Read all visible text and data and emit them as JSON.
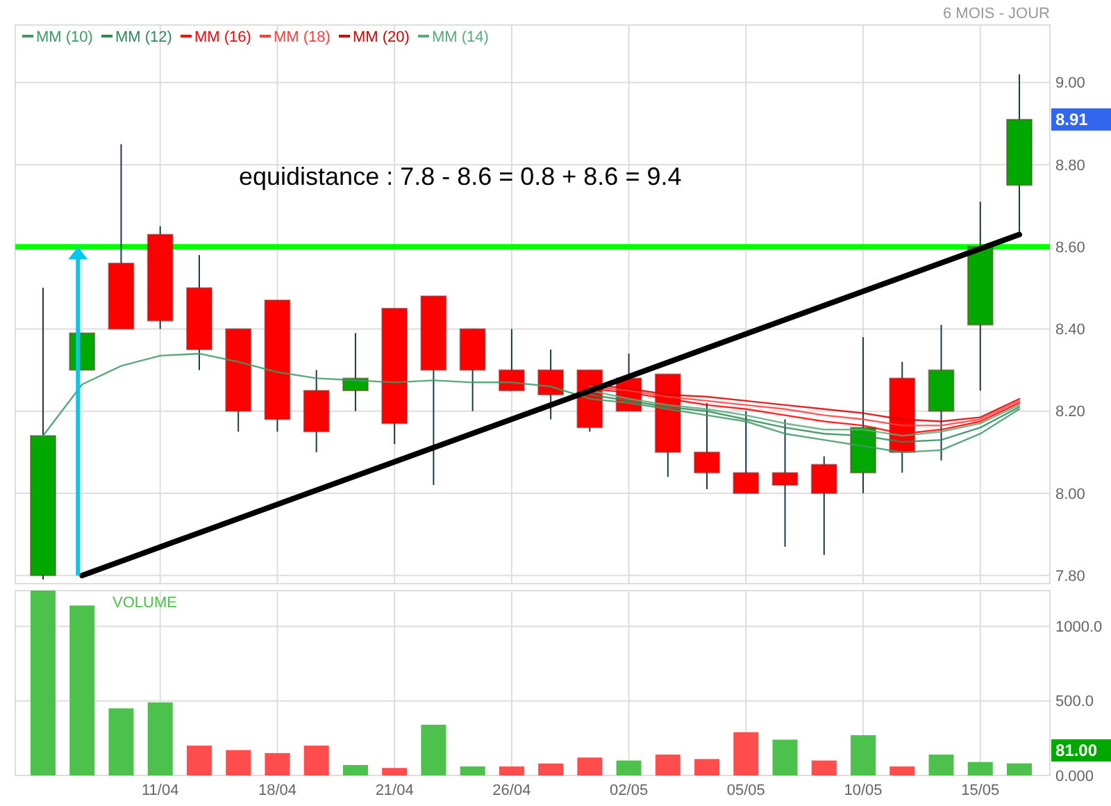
{
  "chart_data": [
    {
      "type": "candlestick",
      "subtitle": "6 MOIS - JOUR",
      "categories": [
        null,
        null,
        null,
        null,
        null,
        null,
        null,
        null,
        null,
        null,
        null,
        null,
        null,
        null,
        null,
        null,
        null,
        null,
        null,
        null,
        null,
        null,
        null,
        null,
        null,
        null
      ],
      "ohlc": [
        [
          7.8,
          8.5,
          7.79,
          8.14
        ],
        [
          8.3,
          8.39,
          8.3,
          8.39
        ],
        [
          8.56,
          8.85,
          8.4,
          8.4
        ],
        [
          8.63,
          8.65,
          8.4,
          8.42
        ],
        [
          8.5,
          8.58,
          8.3,
          8.35
        ],
        [
          8.4,
          8.4,
          8.15,
          8.2
        ],
        [
          8.47,
          8.47,
          8.15,
          8.18
        ],
        [
          8.25,
          8.3,
          8.1,
          8.15
        ],
        [
          8.25,
          8.39,
          8.2,
          8.28
        ],
        [
          8.45,
          8.45,
          8.12,
          8.17
        ],
        [
          8.48,
          8.48,
          8.02,
          8.3
        ],
        [
          8.4,
          8.4,
          8.2,
          8.3
        ],
        [
          8.3,
          8.4,
          8.25,
          8.25
        ],
        [
          8.3,
          8.35,
          8.18,
          8.24
        ],
        [
          8.3,
          8.3,
          8.15,
          8.16
        ],
        [
          8.28,
          8.34,
          8.2,
          8.2
        ],
        [
          8.29,
          8.29,
          8.04,
          8.1
        ],
        [
          8.1,
          8.22,
          8.01,
          8.05
        ],
        [
          8.05,
          8.2,
          8.0,
          8.0
        ],
        [
          8.05,
          8.18,
          7.87,
          8.02
        ],
        [
          8.07,
          8.09,
          7.85,
          8.0
        ],
        [
          8.05,
          8.38,
          8.0,
          8.16
        ],
        [
          8.28,
          8.32,
          8.05,
          8.1
        ],
        [
          8.2,
          8.41,
          8.08,
          8.3
        ],
        [
          8.41,
          8.71,
          8.25,
          8.6
        ],
        [
          8.75,
          9.02,
          8.63,
          8.91
        ]
      ],
      "colors": [
        "#00a800",
        "#00a800",
        "#ff0000",
        "#ff0000",
        "#ff0000",
        "#ff0000",
        "#ff0000",
        "#ff0000",
        "#00a800",
        "#ff0000",
        "#ff0000",
        "#ff0000",
        "#ff0000",
        "#ff0000",
        "#ff0000",
        "#ff0000",
        "#ff0000",
        "#ff0000",
        "#ff0000",
        "#ff0000",
        "#ff0000",
        "#00a800",
        "#ff0000",
        "#00a800",
        "#00a800",
        "#00a800"
      ],
      "series": [
        {
          "type": "line",
          "name": "MM (10)",
          "color": "#3c9a64",
          "values": [
            8.14,
            8.265,
            8.31,
            8.335,
            8.34,
            8.32,
            8.295,
            8.28,
            8.275,
            8.27,
            8.275,
            8.27,
            8.27,
            8.26,
            8.23,
            8.22,
            8.205,
            8.19,
            8.175,
            8.145,
            8.13,
            8.115,
            8.1,
            8.105,
            8.145,
            8.205
          ]
        },
        {
          "type": "line",
          "name": "MM (12)",
          "color": "#2e8b57",
          "values": [
            null,
            null,
            null,
            null,
            null,
            null,
            null,
            null,
            null,
            null,
            null,
            null,
            null,
            null,
            8.24,
            8.225,
            8.21,
            8.2,
            8.18,
            8.16,
            8.145,
            8.14,
            8.125,
            8.13,
            8.16,
            8.21
          ]
        },
        {
          "type": "line",
          "name": "MM (16)",
          "color": "#ff0000",
          "values": [
            null,
            null,
            null,
            null,
            null,
            null,
            null,
            null,
            null,
            null,
            null,
            null,
            null,
            null,
            8.255,
            8.245,
            8.23,
            8.215,
            8.205,
            8.19,
            8.175,
            8.165,
            8.145,
            8.155,
            8.175,
            8.22
          ]
        },
        {
          "type": "line",
          "name": "MM (18)",
          "color": "#ff3c3c",
          "values": [
            null,
            null,
            null,
            null,
            null,
            null,
            null,
            null,
            null,
            null,
            null,
            null,
            null,
            null,
            8.26,
            8.25,
            8.235,
            8.225,
            8.215,
            8.205,
            8.19,
            8.18,
            8.165,
            8.165,
            8.18,
            8.225
          ]
        },
        {
          "type": "line",
          "name": "MM (20)",
          "color": "#d40000",
          "values": [
            null,
            null,
            null,
            null,
            null,
            null,
            null,
            null,
            null,
            null,
            null,
            null,
            null,
            null,
            8.265,
            8.255,
            8.24,
            8.235,
            8.225,
            8.215,
            8.205,
            8.195,
            8.18,
            8.175,
            8.185,
            8.23
          ]
        },
        {
          "type": "line",
          "name": "MM (14)",
          "color": "#5aaa7c",
          "values": [
            null,
            null,
            null,
            null,
            null,
            null,
            null,
            null,
            null,
            null,
            null,
            null,
            null,
            null,
            8.25,
            8.23,
            8.215,
            8.205,
            8.19,
            8.17,
            8.155,
            8.155,
            8.14,
            8.15,
            8.17,
            8.215
          ]
        },
        {
          "type": "line",
          "color": "#000000",
          "values": [
            null,
            7.8,
            null,
            null,
            null,
            null,
            null,
            null,
            null,
            null,
            null,
            null,
            null,
            null,
            null,
            null,
            null,
            null,
            null,
            null,
            null,
            null,
            null,
            null,
            null,
            8.63
          ]
        }
      ],
      "ylim": [
        7.78,
        9.14
      ],
      "yticks": [
        {
          "value": 7.8,
          "label": "7.80"
        },
        {
          "value": 8.0,
          "label": "8.00"
        },
        {
          "value": 8.2,
          "label": "8.20"
        },
        {
          "value": 8.4,
          "label": "8.40"
        },
        {
          "value": 8.6,
          "label": "8.60"
        },
        {
          "value": 8.8,
          "label": "8.80"
        },
        {
          "value": 9.0,
          "label": "9.00"
        }
      ],
      "ref_lines": [
        {
          "axis": "y",
          "value": 8.6,
          "color": "#00ff00"
        }
      ],
      "annotations": [
        "equidistance : 7.8 - 8.6 = 0.8 + 8.6 = 9.4",
        "8.91"
      ],
      "grid": true,
      "legend": "top left",
      "tick_labels": "y"
    },
    {
      "type": "bar",
      "title": "VOLUME",
      "categories": [
        null,
        null,
        null,
        "11/04",
        null,
        null,
        "18/04",
        null,
        null,
        "21/04",
        null,
        null,
        "26/04",
        null,
        null,
        "02/05",
        null,
        null,
        "05/05",
        null,
        null,
        "10/05",
        null,
        null,
        "15/05",
        null
      ],
      "values": [
        1240,
        1140,
        450,
        490,
        200,
        170,
        150,
        200,
        70,
        50,
        340,
        60,
        60,
        80,
        120,
        100,
        140,
        110,
        290,
        240,
        100,
        270,
        60,
        140,
        90,
        81
      ],
      "colors": [
        "#4cc14c",
        "#4cc14c",
        "#4cc14c",
        "#4cc14c",
        "#ff4c4c",
        "#ff4c4c",
        "#ff4c4c",
        "#ff4c4c",
        "#4cc14c",
        "#ff4c4c",
        "#4cc14c",
        "#4cc14c",
        "#ff4c4c",
        "#ff4c4c",
        "#ff4c4c",
        "#4cc14c",
        "#ff4c4c",
        "#ff4c4c",
        "#ff4c4c",
        "#4cc14c",
        "#ff4c4c",
        "#4cc14c",
        "#ff4c4c",
        "#4cc14c",
        "#4cc14c",
        "#4cc14c"
      ],
      "ylim": [
        0,
        1240
      ],
      "yticks": [
        {
          "value": 0,
          "label": "0.000"
        },
        {
          "value": 500,
          "label": "500.0"
        },
        {
          "value": 1000,
          "label": "1000.0"
        }
      ],
      "annotations": [
        "81.00"
      ],
      "grid": true
    }
  ]
}
